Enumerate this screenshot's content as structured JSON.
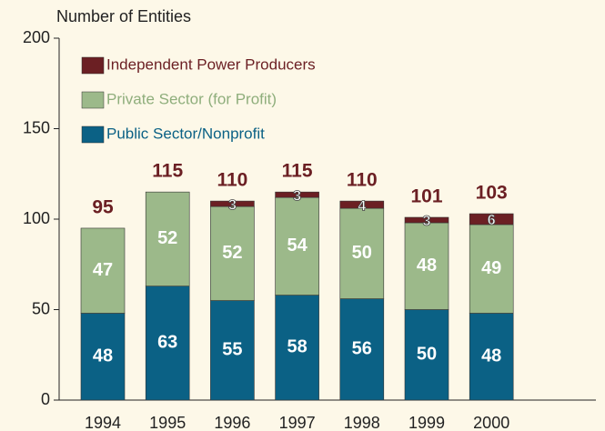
{
  "chart_data": {
    "type": "stacked_bar",
    "y_axis_label": "Number of Entities",
    "categories": [
      "1994",
      "1995",
      "1996",
      "1997",
      "1998",
      "1999",
      "2000"
    ],
    "series": [
      {
        "name": "Public Sector/Nonprofit",
        "color": "#0b6185",
        "values": [
          48,
          63,
          55,
          58,
          56,
          50,
          48
        ]
      },
      {
        "name": "Private Sector (for Profit)",
        "color": "#9cb98a",
        "values": [
          47,
          52,
          52,
          54,
          50,
          48,
          49
        ]
      },
      {
        "name": "Independent Power Producers",
        "color": "#6b1f23",
        "values": [
          null,
          null,
          3,
          3,
          4,
          3,
          6
        ]
      }
    ],
    "totals": [
      95,
      115,
      110,
      115,
      110,
      101,
      103
    ],
    "ylim": [
      0,
      200
    ],
    "yticks": [
      0,
      50,
      100,
      150,
      200
    ]
  }
}
